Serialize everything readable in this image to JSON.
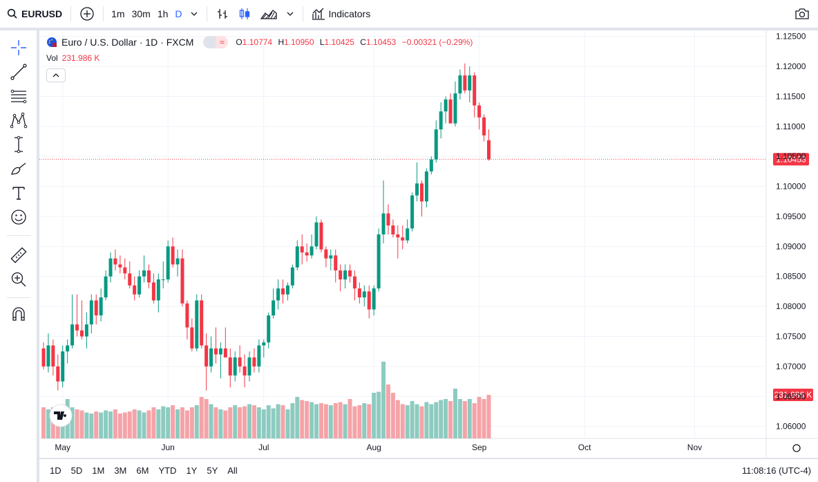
{
  "toolbar": {
    "symbol": "EURUSD",
    "intervals": [
      "1m",
      "30m",
      "1h",
      "D"
    ],
    "active_interval": "D",
    "indicators_label": "Indicators"
  },
  "legend": {
    "title": "Euro / U.S. Dollar · 1D · FXCM",
    "o_label": "O",
    "o": "1.10774",
    "h_label": "H",
    "h": "1.10950",
    "l_label": "L",
    "l": "1.10425",
    "c_label": "C",
    "c": "1.10453",
    "change": "−0.00321 (−0.29%)",
    "vol_label": "Vol",
    "vol_value": "231.986 K"
  },
  "bottombar": {
    "ranges": [
      "1D",
      "5D",
      "1M",
      "3M",
      "6M",
      "YTD",
      "1Y",
      "5Y",
      "All"
    ],
    "clock": "11:08:16 (UTC-4)"
  },
  "colors": {
    "up": "#089981",
    "down": "#f23645",
    "up_vol": "#8dcbc0",
    "down_vol": "#f5a3a8",
    "accent": "#2962ff"
  },
  "chart_data": {
    "type": "candlestick",
    "symbol": "EURUSD",
    "ylim": [
      1.058,
      1.126
    ],
    "y_ticks": [
      "1.12500",
      "1.12000",
      "1.11500",
      "1.11000",
      "1.10500",
      "1.10000",
      "1.09500",
      "1.09000",
      "1.08500",
      "1.08000",
      "1.07500",
      "1.07000",
      "1.06500",
      "1.06000"
    ],
    "x_ticks": [
      {
        "label": "May",
        "index": 4
      },
      {
        "label": "Jun",
        "index": 26
      },
      {
        "label": "Jul",
        "index": 46
      },
      {
        "label": "Aug",
        "index": 69
      },
      {
        "label": "Sep",
        "index": 91
      },
      {
        "label": "Oct",
        "index": 113
      },
      {
        "label": "Nov",
        "index": 136
      }
    ],
    "last_price": "1.10453",
    "last_volume": "231.986 K",
    "candles": [
      [
        1.073,
        1.074,
        1.0695,
        1.07
      ],
      [
        1.07,
        1.0755,
        1.069,
        1.0735
      ],
      [
        1.0735,
        1.0745,
        1.0685,
        1.07
      ],
      [
        1.07,
        1.072,
        1.066,
        1.0675
      ],
      [
        1.0675,
        1.0735,
        1.0665,
        1.0725
      ],
      [
        1.0725,
        1.0745,
        1.0705,
        1.0735
      ],
      [
        1.0735,
        1.082,
        1.073,
        1.077
      ],
      [
        1.077,
        1.082,
        1.075,
        1.076
      ],
      [
        1.076,
        1.081,
        1.0745,
        1.075
      ],
      [
        1.075,
        1.079,
        1.073,
        1.077
      ],
      [
        1.077,
        1.082,
        1.0755,
        1.081
      ],
      [
        1.081,
        1.082,
        1.077,
        1.0785
      ],
      [
        1.0785,
        1.083,
        1.0775,
        1.0815
      ],
      [
        1.0815,
        1.086,
        1.081,
        1.085
      ],
      [
        1.085,
        1.089,
        1.084,
        1.088
      ],
      [
        1.088,
        1.0895,
        1.086,
        1.087
      ],
      [
        1.087,
        1.0885,
        1.0855,
        1.0865
      ],
      [
        1.0865,
        1.088,
        1.0845,
        1.0855
      ],
      [
        1.0855,
        1.0875,
        1.083,
        1.0835
      ],
      [
        1.0835,
        1.085,
        1.081,
        1.082
      ],
      [
        1.082,
        1.086,
        1.0815,
        1.085
      ],
      [
        1.085,
        1.0885,
        1.084,
        1.086
      ],
      [
        1.086,
        1.087,
        1.083,
        1.084
      ],
      [
        1.084,
        1.0855,
        1.0805,
        1.081
      ],
      [
        1.081,
        1.0855,
        1.079,
        1.0845
      ],
      [
        1.0845,
        1.0875,
        1.083,
        1.0845
      ],
      [
        1.0845,
        1.091,
        1.084,
        1.09
      ],
      [
        1.09,
        1.0915,
        1.0865,
        1.087
      ],
      [
        1.087,
        1.0895,
        1.085,
        1.088
      ],
      [
        1.088,
        1.0895,
        1.08,
        1.0805
      ],
      [
        1.0805,
        1.081,
        1.0745,
        1.0765
      ],
      [
        1.0765,
        1.078,
        1.0725,
        1.073
      ],
      [
        1.073,
        1.082,
        1.0725,
        1.081
      ],
      [
        1.081,
        1.082,
        1.073,
        1.0735
      ],
      [
        1.0735,
        1.0755,
        1.066,
        1.07
      ],
      [
        1.07,
        1.075,
        1.069,
        1.073
      ],
      [
        1.073,
        1.0765,
        1.0705,
        1.072
      ],
      [
        1.072,
        1.074,
        1.068,
        1.073
      ],
      [
        1.073,
        1.0765,
        1.0715,
        1.0715
      ],
      [
        1.0715,
        1.073,
        1.0665,
        1.0685
      ],
      [
        1.0685,
        1.0725,
        1.0675,
        1.0715
      ],
      [
        1.0715,
        1.0735,
        1.069,
        1.07
      ],
      [
        1.07,
        1.072,
        1.0665,
        1.0685
      ],
      [
        1.0685,
        1.0725,
        1.0675,
        1.0715
      ],
      [
        1.0715,
        1.073,
        1.069,
        1.07
      ],
      [
        1.07,
        1.0745,
        1.069,
        1.0735
      ],
      [
        1.0735,
        1.0745,
        1.0715,
        1.074
      ],
      [
        1.074,
        1.079,
        1.073,
        1.0785
      ],
      [
        1.0785,
        1.083,
        1.078,
        1.081
      ],
      [
        1.081,
        1.0845,
        1.0795,
        1.083
      ],
      [
        1.083,
        1.0845,
        1.0805,
        1.082
      ],
      [
        1.082,
        1.084,
        1.081,
        1.0835
      ],
      [
        1.0835,
        1.087,
        1.083,
        1.0865
      ],
      [
        1.0865,
        1.091,
        1.086,
        1.09
      ],
      [
        1.09,
        1.092,
        1.087,
        1.089
      ],
      [
        1.089,
        1.0905,
        1.0875,
        1.0885
      ],
      [
        1.0885,
        1.092,
        1.088,
        1.09
      ],
      [
        1.09,
        1.095,
        1.0895,
        1.094
      ],
      [
        1.094,
        1.0945,
        1.089,
        1.0895
      ],
      [
        1.0895,
        1.09,
        1.0865,
        1.088
      ],
      [
        1.088,
        1.0895,
        1.086,
        1.0885
      ],
      [
        1.0885,
        1.0895,
        1.084,
        1.086
      ],
      [
        1.086,
        1.087,
        1.0825,
        1.0845
      ],
      [
        1.0845,
        1.087,
        1.083,
        1.086
      ],
      [
        1.086,
        1.087,
        1.084,
        1.085
      ],
      [
        1.085,
        1.086,
        1.081,
        1.083
      ],
      [
        1.083,
        1.084,
        1.0805,
        1.0815
      ],
      [
        1.0815,
        1.0835,
        1.08,
        1.0825
      ],
      [
        1.0825,
        1.0835,
        1.078,
        1.0795
      ],
      [
        1.0795,
        1.0835,
        1.0785,
        1.083
      ],
      [
        1.083,
        1.093,
        1.0825,
        1.092
      ],
      [
        1.092,
        1.101,
        1.0905,
        1.0955
      ],
      [
        1.0955,
        1.097,
        1.092,
        1.0935
      ],
      [
        1.0935,
        1.0945,
        1.0915,
        1.092
      ],
      [
        1.092,
        1.0935,
        1.088,
        1.0915
      ],
      [
        1.0915,
        1.0935,
        1.0895,
        1.091
      ],
      [
        1.091,
        1.0945,
        1.0905,
        1.093
      ],
      [
        1.093,
        1.099,
        1.0925,
        1.0985
      ],
      [
        1.0985,
        1.104,
        1.0975,
        1.1005
      ],
      [
        1.1005,
        1.101,
        1.095,
        1.0975
      ],
      [
        1.0975,
        1.103,
        1.0965,
        1.1025
      ],
      [
        1.1025,
        1.105,
        1.102,
        1.1045
      ],
      [
        1.1045,
        1.111,
        1.104,
        1.1095
      ],
      [
        1.1095,
        1.114,
        1.108,
        1.1125
      ],
      [
        1.1125,
        1.115,
        1.1105,
        1.1145
      ],
      [
        1.1145,
        1.1155,
        1.111,
        1.1105
      ],
      [
        1.1105,
        1.1175,
        1.11,
        1.1155
      ],
      [
        1.1155,
        1.1195,
        1.1145,
        1.1185
      ],
      [
        1.1185,
        1.1205,
        1.1155,
        1.116
      ],
      [
        1.116,
        1.12,
        1.114,
        1.1185
      ],
      [
        1.1185,
        1.119,
        1.1115,
        1.1135
      ],
      [
        1.1135,
        1.114,
        1.1095,
        1.1115
      ],
      [
        1.1115,
        1.112,
        1.1075,
        1.1085
      ],
      [
        1.1077,
        1.1095,
        1.1043,
        1.1045
      ]
    ],
    "volumes": [
      30,
      28,
      30,
      27,
      32,
      38,
      30,
      28,
      27,
      25,
      24,
      26,
      25,
      27,
      26,
      28,
      24,
      25,
      26,
      28,
      27,
      25,
      27,
      30,
      28,
      31,
      30,
      32,
      28,
      30,
      27,
      30,
      32,
      40,
      38,
      33,
      30,
      28,
      27,
      30,
      32,
      30,
      31,
      33,
      32,
      30,
      28,
      32,
      29,
      33,
      32,
      28,
      34,
      40,
      37,
      36,
      35,
      33,
      34,
      33,
      32,
      34,
      35,
      33,
      38,
      31,
      32,
      34,
      33,
      44,
      45,
      74,
      52,
      44,
      37,
      33,
      32,
      36,
      33,
      31,
      35,
      33,
      35,
      37,
      38,
      36,
      48,
      38,
      36,
      38,
      34,
      40,
      38,
      42
    ],
    "volume_max": 100
  }
}
